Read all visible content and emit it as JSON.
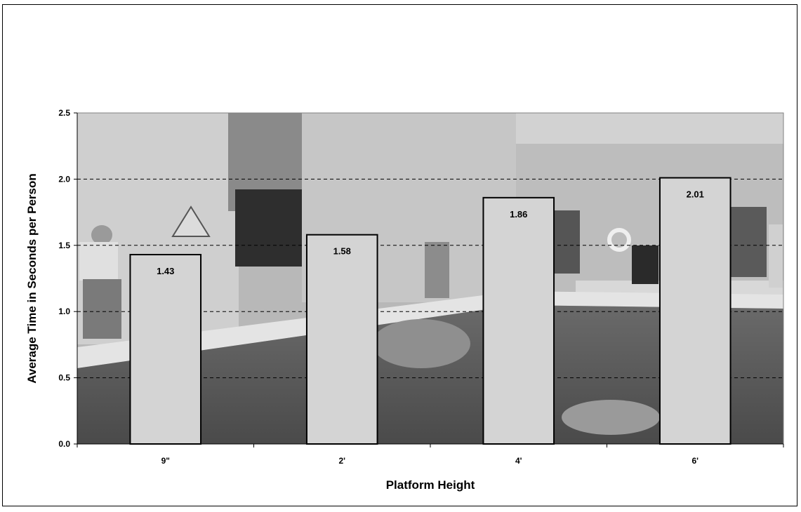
{
  "chart_data": {
    "type": "bar",
    "title": "",
    "xlabel": "Platform Height",
    "ylabel": "Average Time in Seconds per Person",
    "categories": [
      "9\"",
      "2'",
      "4'",
      "6'"
    ],
    "values": [
      1.43,
      1.58,
      1.86,
      2.01
    ],
    "data_labels": [
      "1.43",
      "1.58",
      "1.86",
      "2.01"
    ],
    "ylim": [
      0,
      2.5
    ],
    "yticks": [
      "0.0",
      "0.5",
      "1.0",
      "1.5",
      "2.0",
      "2.5"
    ],
    "ytick_values": [
      0,
      0.5,
      1.0,
      1.5,
      2.0,
      2.5
    ],
    "grid": "dashed horizontal",
    "legend": "none",
    "background": "grayscale photograph of people jumping from platforms into a pool",
    "bar_color": "#d4d4d4",
    "bar_edge_color": "#000000"
  }
}
